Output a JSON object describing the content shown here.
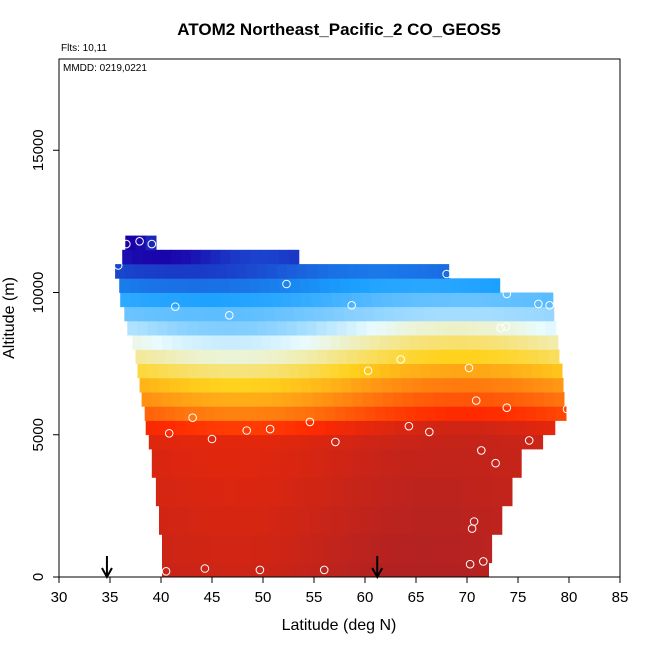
{
  "chart_data": {
    "type": "heatmap",
    "title": "ATOM2 Northeast_Pacific_2 CO_GEOS5",
    "annotations": {
      "flights": "Flts: 10,11",
      "dates": "MMDD: 0219,0221"
    },
    "xlabel": "Latitude (deg N)",
    "ylabel": "Altitude (m)",
    "xlim": [
      30,
      85
    ],
    "ylim": [
      0,
      18000
    ],
    "x_ticks": [
      "30",
      "35",
      "40",
      "45",
      "50",
      "55",
      "60",
      "65",
      "70",
      "75",
      "80",
      "85"
    ],
    "y_ticks": [
      "0",
      "5000",
      "10000",
      "15000"
    ],
    "y_tick_values": [
      0,
      5000,
      10000,
      15000
    ],
    "grid": false,
    "legend": "none",
    "arrows_at_latitude": [
      34.7,
      61.2
    ],
    "colors": {
      "low": "#1a00a8",
      "lowmid": "#1aa0ff",
      "mid_light": "#e8fbff",
      "mid": "#ffd21e",
      "high": "#ff2a00",
      "highest": "#b22222"
    },
    "bands": [
      {
        "z0": 0,
        "z1": 500,
        "lat0": 40.1,
        "lat1": 72.1,
        "level": 0.97
      },
      {
        "z0": 500,
        "z1": 1500,
        "lat0": 40.1,
        "lat1": 72.4,
        "level": 0.96
      },
      {
        "z0": 1500,
        "z1": 2500,
        "lat0": 39.8,
        "lat1": 73.4,
        "level": 0.95
      },
      {
        "z0": 2500,
        "z1": 3500,
        "lat0": 39.5,
        "lat1": 74.4,
        "level": 0.94
      },
      {
        "z0": 3500,
        "z1": 4500,
        "lat0": 39.1,
        "lat1": 75.3,
        "level": 0.93
      },
      {
        "z0": 4500,
        "z1": 5000,
        "lat0": 38.8,
        "lat1": 77.4,
        "level": 0.92
      },
      {
        "z0": 5000,
        "z1": 5500,
        "lat0": 38.5,
        "lat1": 78.6,
        "level": 0.86
      },
      {
        "z0": 5500,
        "z1": 6000,
        "lat0": 38.4,
        "lat1": 79.7,
        "level": 0.75
      },
      {
        "z0": 6000,
        "z1": 6500,
        "lat0": 38.1,
        "lat1": 79.5,
        "level": 0.68
      },
      {
        "z0": 6500,
        "z1": 7000,
        "lat0": 37.9,
        "lat1": 79.4,
        "level": 0.62
      },
      {
        "z0": 7000,
        "z1": 7500,
        "lat0": 37.7,
        "lat1": 79.3,
        "level": 0.55
      },
      {
        "z0": 7500,
        "z1": 8000,
        "lat0": 37.5,
        "lat1": 79.0,
        "level": 0.48
      },
      {
        "z0": 8000,
        "z1": 8500,
        "lat0": 37.2,
        "lat1": 78.9,
        "level": 0.42
      },
      {
        "z0": 8500,
        "z1": 9000,
        "lat0": 36.7,
        "lat1": 78.7,
        "level": 0.35
      },
      {
        "z0": 9000,
        "z1": 9500,
        "lat0": 36.4,
        "lat1": 78.5,
        "level": 0.28
      },
      {
        "z0": 9500,
        "z1": 10000,
        "lat0": 36.0,
        "lat1": 78.4,
        "level": 0.22
      },
      {
        "z0": 10000,
        "z1": 10500,
        "lat0": 35.9,
        "lat1": 73.2,
        "level": 0.16
      },
      {
        "z0": 10500,
        "z1": 11000,
        "lat0": 35.5,
        "lat1": 68.2,
        "level": 0.1
      },
      {
        "z0": 11000,
        "z1": 11500,
        "lat0": 36.2,
        "lat1": 53.5,
        "level": 0.04
      },
      {
        "z0": 11500,
        "z1": 12000,
        "lat0": 36.5,
        "lat1": 39.5,
        "level": 0.01
      }
    ],
    "points": [
      {
        "x": 40.5,
        "y": 200
      },
      {
        "x": 44.3,
        "y": 300
      },
      {
        "x": 49.7,
        "y": 250
      },
      {
        "x": 56,
        "y": 250
      },
      {
        "x": 70.3,
        "y": 450
      },
      {
        "x": 71.6,
        "y": 550
      },
      {
        "x": 70.5,
        "y": 1700
      },
      {
        "x": 70.7,
        "y": 1950
      },
      {
        "x": 72.8,
        "y": 4000
      },
      {
        "x": 71.4,
        "y": 4450
      },
      {
        "x": 40.8,
        "y": 5050
      },
      {
        "x": 45,
        "y": 4850
      },
      {
        "x": 48.4,
        "y": 5150
      },
      {
        "x": 50.7,
        "y": 5200
      },
      {
        "x": 54.6,
        "y": 5450
      },
      {
        "x": 57.1,
        "y": 4750
      },
      {
        "x": 64.3,
        "y": 5300
      },
      {
        "x": 66.3,
        "y": 5100
      },
      {
        "x": 76.1,
        "y": 4800
      },
      {
        "x": 43.1,
        "y": 5600
      },
      {
        "x": 70.9,
        "y": 6200
      },
      {
        "x": 73.9,
        "y": 5950
      },
      {
        "x": 79.8,
        "y": 5900
      },
      {
        "x": 60.3,
        "y": 7250
      },
      {
        "x": 63.5,
        "y": 7650
      },
      {
        "x": 70.2,
        "y": 7350
      },
      {
        "x": 73.3,
        "y": 8750
      },
      {
        "x": 73.8,
        "y": 8800
      },
      {
        "x": 46.7,
        "y": 9200
      },
      {
        "x": 41.4,
        "y": 9500
      },
      {
        "x": 58.7,
        "y": 9550
      },
      {
        "x": 52.3,
        "y": 10300
      },
      {
        "x": 73.9,
        "y": 9950
      },
      {
        "x": 77,
        "y": 9600
      },
      {
        "x": 78.1,
        "y": 9550
      },
      {
        "x": 68,
        "y": 10650
      },
      {
        "x": 35.8,
        "y": 10950
      },
      {
        "x": 36.6,
        "y": 11700
      },
      {
        "x": 37.9,
        "y": 11800
      },
      {
        "x": 39.1,
        "y": 11700
      }
    ]
  }
}
